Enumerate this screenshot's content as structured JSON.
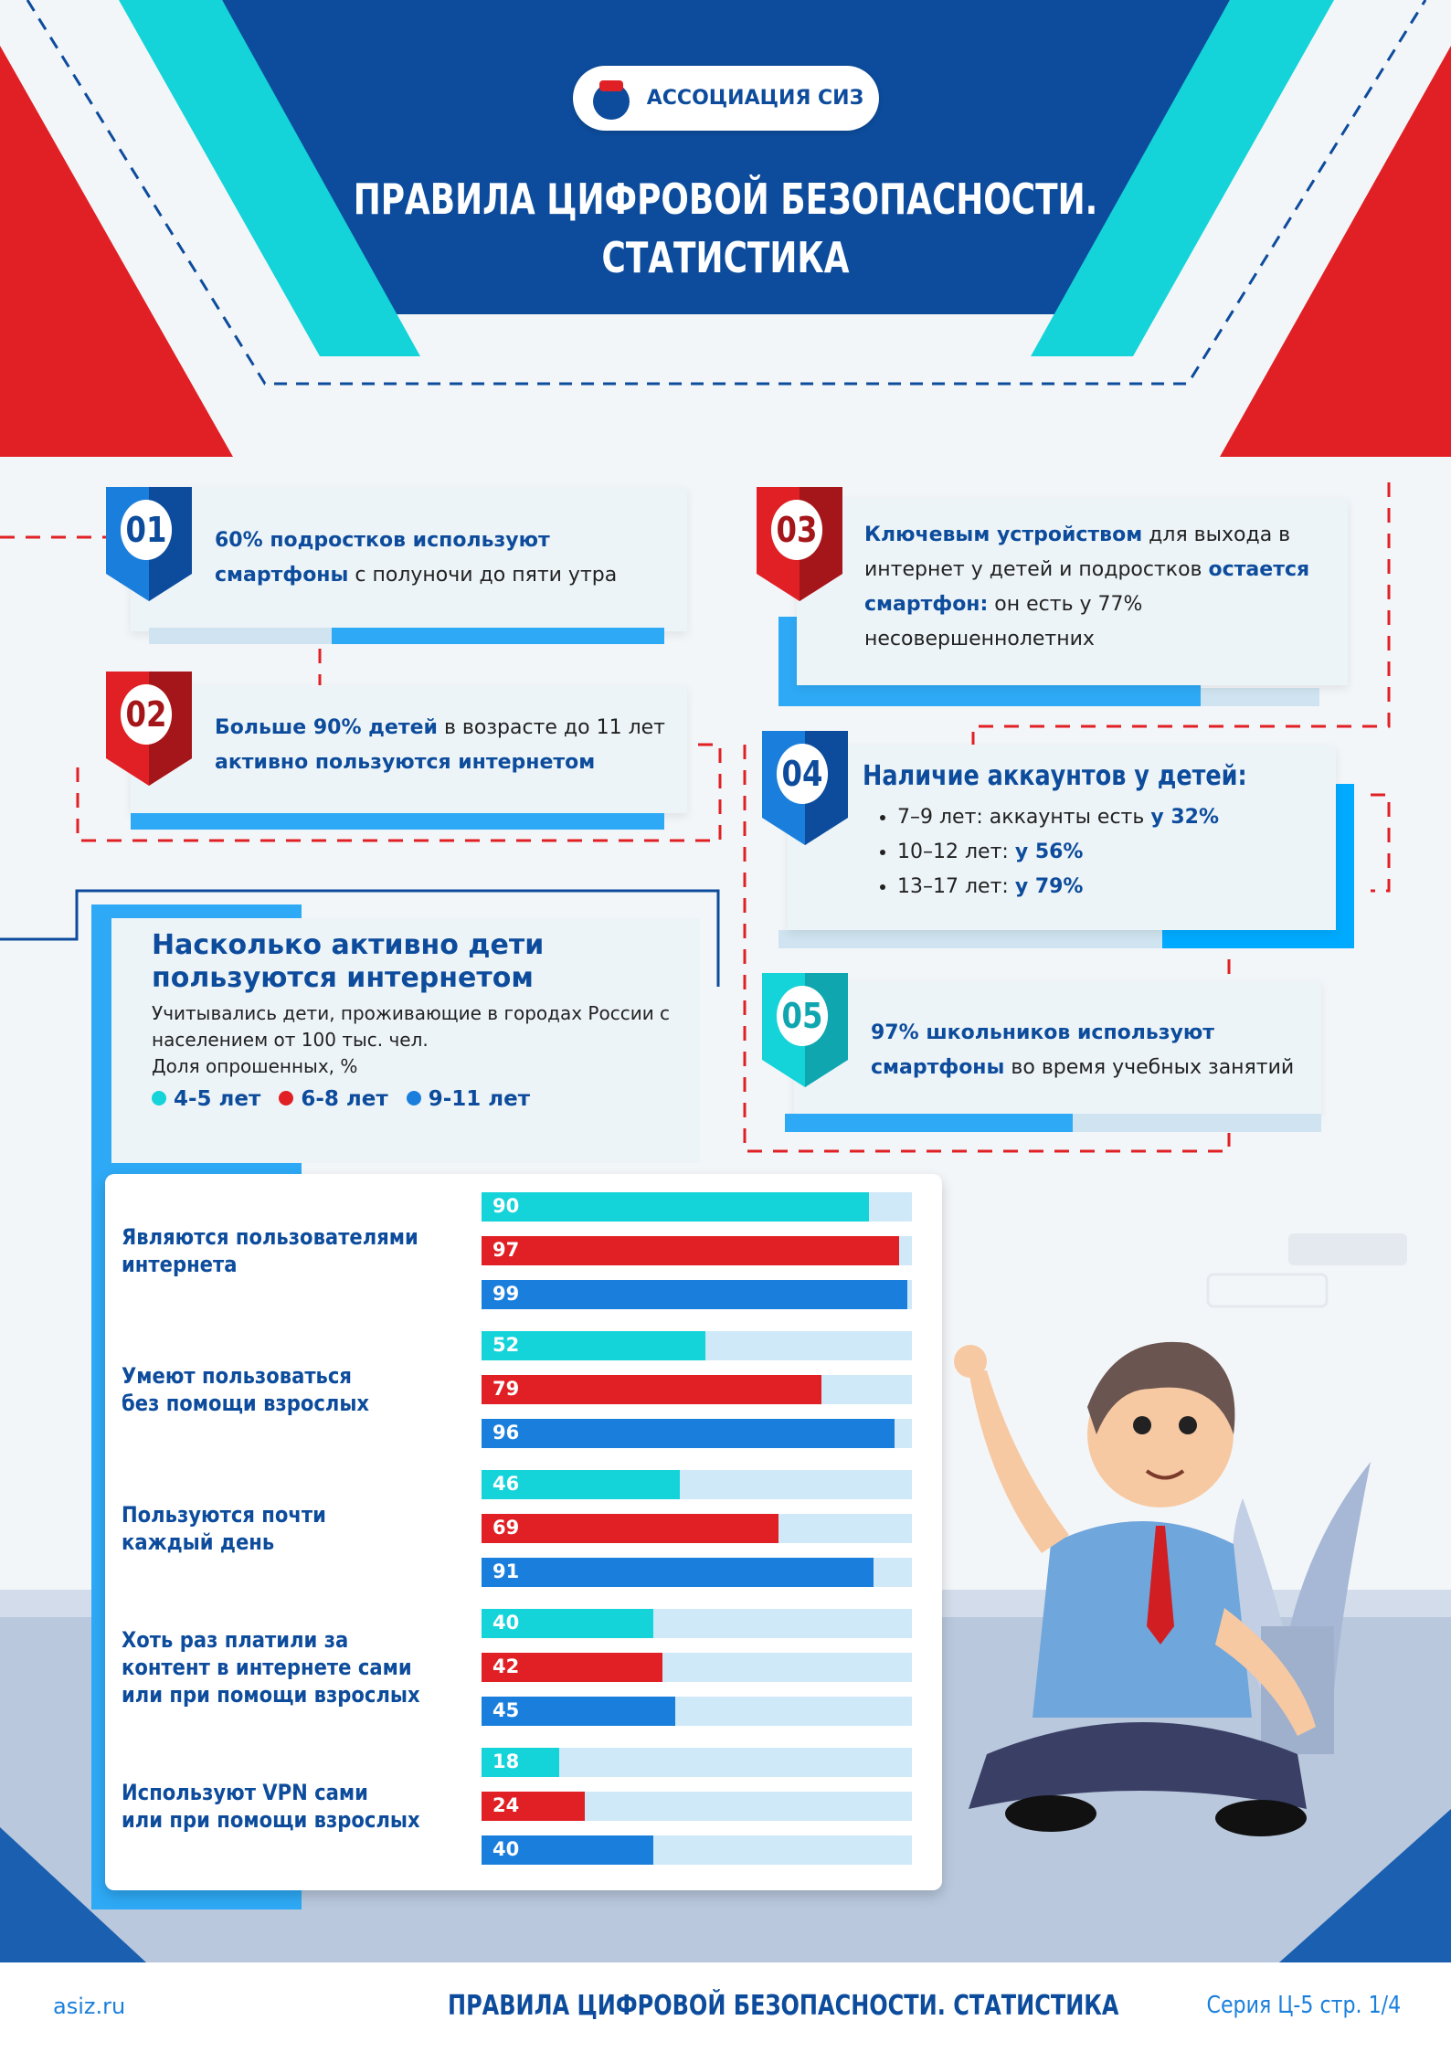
{
  "header": {
    "logo_text": "АССОЦИАЦИЯ СИЗ",
    "title_line1": "ПРАВИЛА ЦИФРОВОЙ БЕЗОПАСНОСТИ.",
    "title_line2": "СТАТИСТИКА"
  },
  "colors": {
    "navy": "#0d4c9c",
    "blue": "#1a7fdc",
    "red": "#e02024",
    "cyan": "#14d3d9",
    "light": "#2ea9f5"
  },
  "facts": [
    {
      "num": "01",
      "parts": [
        {
          "t": "60% подростков используют смартфоны",
          "h": true
        },
        {
          "t": " с полуночи до пяти утра",
          "h": false
        }
      ]
    },
    {
      "num": "02",
      "parts": [
        {
          "t": "Больше 90% детей",
          "h": true
        },
        {
          "t": " в возрасте до 11 лет ",
          "h": false
        },
        {
          "t": "активно пользуются интернетом",
          "h": true
        }
      ]
    },
    {
      "num": "03",
      "parts": [
        {
          "t": "Ключевым устройством",
          "h": true
        },
        {
          "t": " для выхода в интернет у детей и подростков ",
          "h": false
        },
        {
          "t": "остается смартфон:",
          "h": true
        },
        {
          "t": " он есть у 77% несовершеннолетних",
          "h": false
        }
      ]
    },
    {
      "num": "04",
      "title": "Наличие аккаунтов у детей:",
      "items": [
        {
          "a": "7–9 лет: аккаунты есть ",
          "b": "у 32%"
        },
        {
          "a": "10–12 лет: ",
          "b": "у 56%"
        },
        {
          "a": "13–17 лет: ",
          "b": "у 79%"
        }
      ]
    },
    {
      "num": "05",
      "parts": [
        {
          "t": "97% школьников используют смартфоны",
          "h": true
        },
        {
          "t": " во время учебных занятий",
          "h": false
        }
      ]
    }
  ],
  "chart_data": {
    "type": "bar",
    "title": "Насколько активно дети пользуются интернетом",
    "subtitle": "Учитывались дети, проживающие в городах России с населением от 100 тыс. чел.",
    "ylabel": "Доля опрошенных, %",
    "xlim": [
      0,
      100
    ],
    "legend": "top-left",
    "categories": [
      "Являются пользователями интернета",
      "Умеют пользоваться без помощи взрослых",
      "Пользуются почти каждый день",
      "Хоть раз платили за контент в интернете сами или при помощи взрослых",
      "Используют VPN сами или при помощи взрослых"
    ],
    "category_lines": [
      [
        "Являются пользователями",
        "интернета"
      ],
      [
        "Умеют пользоваться",
        "без помощи взрослых"
      ],
      [
        "Пользуются почти",
        "каждый день"
      ],
      [
        "Хоть раз платили за",
        "контент в интернете сами",
        "или при помощи взрослых"
      ],
      [
        "Используют VPN сами",
        "или при помощи взрослых"
      ]
    ],
    "series": [
      {
        "name": "4-5 лет",
        "color": "#14d3d9",
        "values": [
          90,
          52,
          46,
          40,
          18
        ]
      },
      {
        "name": "6-8 лет",
        "color": "#e02024",
        "values": [
          97,
          79,
          69,
          42,
          24
        ]
      },
      {
        "name": "9-11 лет",
        "color": "#1a7fdc",
        "values": [
          99,
          96,
          91,
          45,
          40
        ]
      }
    ]
  },
  "footer": {
    "site": "asiz.ru",
    "title": "ПРАВИЛА ЦИФРОВОЙ БЕЗОПАСНОСТИ. СТАТИСТИКА",
    "series": "Серия Ц-5 стр. 1/4"
  }
}
